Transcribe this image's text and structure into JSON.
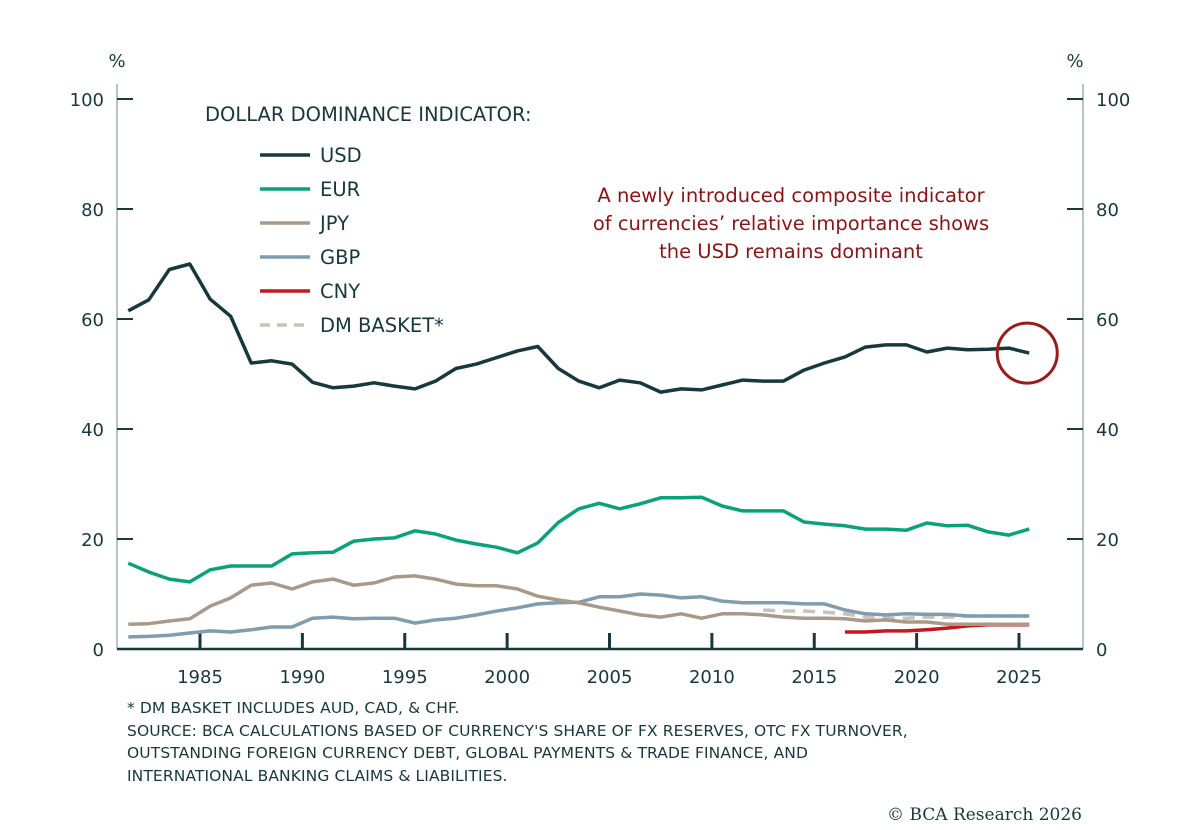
{
  "chart_data": {
    "type": "line",
    "title": "DOLLAR DOMINANCE INDICATOR:",
    "ylabel_left": "%",
    "ylabel_right": "%",
    "ylim": [
      0,
      100
    ],
    "xlim": [
      1981,
      2028
    ],
    "yticks": [
      0,
      20,
      40,
      60,
      80,
      100
    ],
    "xticks": [
      1985,
      1990,
      1995,
      2000,
      2005,
      2010,
      2015,
      2020,
      2025
    ],
    "grid": false,
    "legend_position": "top-left",
    "annotation": [
      "A newly introduced composite indicator",
      "of currencies’ relative importance shows",
      "the USD remains dominant"
    ],
    "series": [
      {
        "name": "USD",
        "color": "#17393d",
        "dash": false,
        "start": 1981,
        "values": [
          61.5,
          63.5,
          69,
          70,
          63.6,
          60.5,
          52,
          52.4,
          51.8,
          48.5,
          47.5,
          47.8,
          48.4,
          47.8,
          47.3,
          48.7,
          51,
          51.8,
          53,
          54.2,
          55,
          51,
          48.7,
          47.5,
          48.9,
          48.4,
          46.7,
          47.3,
          47.1,
          48,
          48.9,
          48.7,
          48.7,
          50.7,
          52,
          53.1,
          54.9,
          55.3,
          55.3,
          54,
          54.7,
          54.4,
          54.5,
          54.7,
          53.8
        ]
      },
      {
        "name": "EUR",
        "color": "#0aa27a",
        "dash": false,
        "start": 1981,
        "values": [
          15.6,
          14,
          12.7,
          12.2,
          14.4,
          15.1,
          15.1,
          15.1,
          17.3,
          17.5,
          17.6,
          19.6,
          20,
          20.2,
          21.5,
          20.9,
          19.8,
          19.1,
          18.5,
          17.5,
          19.3,
          23,
          25.5,
          26.5,
          25.5,
          26.4,
          27.5,
          27.5,
          27.6,
          26,
          25.1,
          25.1,
          25.1,
          23.1,
          22.7,
          22.4,
          21.8,
          21.8,
          21.6,
          22.9,
          22.4,
          22.5,
          21.3,
          20.7,
          21.8
        ]
      },
      {
        "name": "JPY",
        "color": "#a8998a",
        "dash": false,
        "start": 1981,
        "values": [
          4.5,
          4.6,
          5.1,
          5.5,
          7.8,
          9.3,
          11.6,
          12,
          10.9,
          12.2,
          12.7,
          11.6,
          12,
          13.1,
          13.3,
          12.7,
          11.8,
          11.5,
          11.5,
          10.9,
          9.6,
          8.9,
          8.4,
          7.6,
          6.9,
          6.2,
          5.8,
          6.4,
          5.6,
          6.4,
          6.4,
          6.2,
          5.8,
          5.6,
          5.6,
          5.5,
          5.1,
          5.3,
          4.9,
          4.9,
          4.5,
          4.5,
          4.5,
          4.5,
          4.5
        ]
      },
      {
        "name": "GBP",
        "color": "#7f9cb0",
        "dash": false,
        "start": 1981,
        "values": [
          2.2,
          2.3,
          2.5,
          2.9,
          3.3,
          3.1,
          3.5,
          4,
          4,
          5.6,
          5.8,
          5.5,
          5.6,
          5.6,
          4.7,
          5.3,
          5.6,
          6.2,
          6.9,
          7.5,
          8.2,
          8.4,
          8.5,
          9.5,
          9.5,
          10,
          9.8,
          9.3,
          9.5,
          8.7,
          8.4,
          8.4,
          8.4,
          8.2,
          8.2,
          7.1,
          6.4,
          6.2,
          6.4,
          6.3,
          6.3,
          6,
          6,
          6,
          6
        ]
      },
      {
        "name": "CNY",
        "color": "#c0191e",
        "dash": false,
        "start": 2016,
        "values": [
          3.1,
          3.1,
          3.3,
          3.3,
          3.5,
          3.8,
          4.2,
          4.4,
          4.4,
          4.4
        ]
      },
      {
        "name": "DM BASKET*",
        "color": "#c8c2ba",
        "dash": true,
        "start": 2012,
        "values": [
          7.1,
          6.9,
          6.9,
          6.7,
          6.4,
          5.8,
          5.6,
          5.6,
          5.8,
          5.8,
          6,
          6,
          6,
          6
        ]
      }
    ]
  },
  "footnotes": [
    "* DM BASKET INCLUDES AUD, CAD, & CHF.",
    "SOURCE: BCA CALCULATIONS BASED OF CURRENCY'S SHARE OF FX RESERVES, OTC FX TURNOVER,",
    "OUTSTANDING FOREIGN CURRENCY DEBT, GLOBAL PAYMENTS & TRADE FINANCE, AND",
    "INTERNATIONAL BANKING CLAIMS & LIABILITIES."
  ],
  "copyright": "© BCA Research 2026",
  "colors": {
    "axis": "#17393d",
    "frame": "#b9c4c6",
    "annotation": "#8b1414",
    "highlight": "#9b1b1b"
  }
}
